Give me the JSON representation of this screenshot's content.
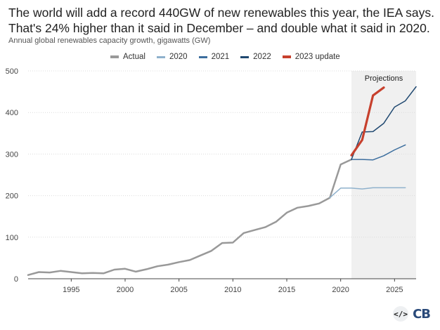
{
  "title": "The world will add a record 440GW of new renewables this year, the IEA says. That's 24% higher than it said in December – and double what it said in 2020.",
  "subtitle": "Annual global renewables capacity growth, gigawatts (GW)",
  "logo": {
    "code_symbol": "</>",
    "text": "CB"
  },
  "chart_data": {
    "type": "line",
    "xlim": [
      1991,
      2027
    ],
    "ylim": [
      0,
      500
    ],
    "x_ticks": [
      1995,
      2000,
      2005,
      2010,
      2015,
      2020,
      2025
    ],
    "y_ticks": [
      0,
      100,
      200,
      300,
      400,
      500
    ],
    "grid": "horizontal",
    "legend_position": "top",
    "projection_band": {
      "label": "Projections",
      "from": 2021,
      "to": 2027,
      "color": "#f0f0f0"
    },
    "series": [
      {
        "name": "Actual",
        "color": "#999999",
        "width": 2.5,
        "x": [
          1991,
          1992,
          1993,
          1994,
          1995,
          1996,
          1997,
          1998,
          1999,
          2000,
          2001,
          2002,
          2003,
          2004,
          2005,
          2006,
          2007,
          2008,
          2009,
          2010,
          2011,
          2012,
          2013,
          2014,
          2015,
          2016,
          2017,
          2018,
          2019,
          2020,
          2021
        ],
        "y": [
          9,
          16,
          15,
          19,
          16,
          13,
          14,
          13,
          22,
          24,
          17,
          23,
          30,
          34,
          40,
          45,
          56,
          67,
          86,
          87,
          110,
          117,
          124,
          137,
          159,
          171,
          175,
          181,
          195,
          275,
          287
        ]
      },
      {
        "name": "2020",
        "color": "#8fb1cc",
        "width": 1.5,
        "x": [
          2019,
          2020,
          2021,
          2022,
          2023,
          2024,
          2025,
          2026
        ],
        "y": [
          195,
          218,
          218,
          216,
          219,
          219,
          219,
          219
        ]
      },
      {
        "name": "2021",
        "color": "#3c6e9e",
        "width": 1.5,
        "x": [
          2021,
          2022,
          2023,
          2024,
          2025,
          2026
        ],
        "y": [
          287,
          287,
          286,
          296,
          310,
          322
        ]
      },
      {
        "name": "2022",
        "color": "#1f4870",
        "width": 1.5,
        "x": [
          2021,
          2022,
          2023,
          2024,
          2025,
          2026,
          2027
        ],
        "y": [
          287,
          353,
          354,
          374,
          413,
          428,
          462
        ]
      },
      {
        "name": "2023 update",
        "color": "#c7402d",
        "width": 3.2,
        "x": [
          2021,
          2022,
          2023,
          2024
        ],
        "y": [
          297,
          334,
          441,
          460
        ]
      }
    ]
  }
}
